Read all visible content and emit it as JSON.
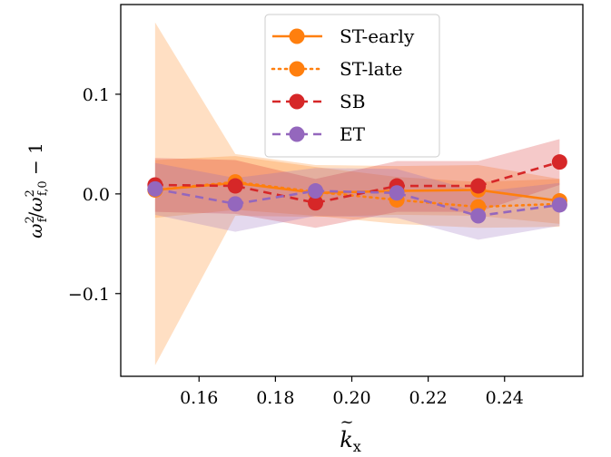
{
  "chart_data": {
    "type": "line",
    "xlabel": "k̃x",
    "ylabel": "ω̃f² / ω̃f,0² − 1",
    "xlim": [
      0.1395,
      0.2605
    ],
    "ylim": [
      -0.183,
      0.19
    ],
    "xticks": [
      0.16,
      0.18,
      0.2,
      0.22,
      0.24
    ],
    "xtick_labels": [
      "0.16",
      "0.18",
      "0.20",
      "0.22",
      "0.24"
    ],
    "yticks": [
      -0.1,
      0.0,
      0.1
    ],
    "ytick_labels": [
      "−0.1",
      "0.0",
      "0.1"
    ],
    "legend_position": "top-center",
    "grid": false,
    "x": [
      0.1485,
      0.1695,
      0.1905,
      0.2118,
      0.2331,
      0.2544
    ],
    "series": [
      {
        "name": "ST-early",
        "color": "#ff7f0e",
        "linestyle": "solid",
        "values": [
          0.004,
          0.011,
          0.001,
          0.003,
          0.004,
          -0.007
        ],
        "band_low": [
          -0.172,
          -0.022,
          -0.023,
          -0.021,
          -0.022,
          -0.03
        ],
        "band_high": [
          0.172,
          0.04,
          0.029,
          0.028,
          0.029,
          0.015
        ]
      },
      {
        "name": "ST-late",
        "color": "#ff7f0e",
        "linestyle": "dotted",
        "values": [
          0.004,
          0.012,
          0.002,
          -0.006,
          -0.013,
          -0.01
        ],
        "band_low": [
          -0.024,
          -0.016,
          -0.022,
          -0.03,
          -0.034,
          -0.033
        ],
        "band_high": [
          0.034,
          0.038,
          0.027,
          0.017,
          0.012,
          0.015
        ]
      },
      {
        "name": "SB",
        "color": "#d62728",
        "linestyle": "dashed",
        "values": [
          0.009,
          0.008,
          -0.009,
          0.008,
          0.008,
          0.032
        ],
        "band_low": [
          -0.018,
          -0.02,
          -0.034,
          -0.018,
          -0.018,
          0.009
        ],
        "band_high": [
          0.036,
          0.034,
          0.015,
          0.033,
          0.033,
          0.055
        ]
      },
      {
        "name": "ET",
        "color": "#9467bd",
        "linestyle": "dashed",
        "values": [
          0.005,
          -0.01,
          0.003,
          0.001,
          -0.022,
          -0.011
        ],
        "band_low": [
          -0.021,
          -0.038,
          -0.022,
          -0.024,
          -0.046,
          -0.032
        ],
        "band_high": [
          0.031,
          0.016,
          0.026,
          0.025,
          0.002,
          0.011
        ]
      }
    ]
  }
}
